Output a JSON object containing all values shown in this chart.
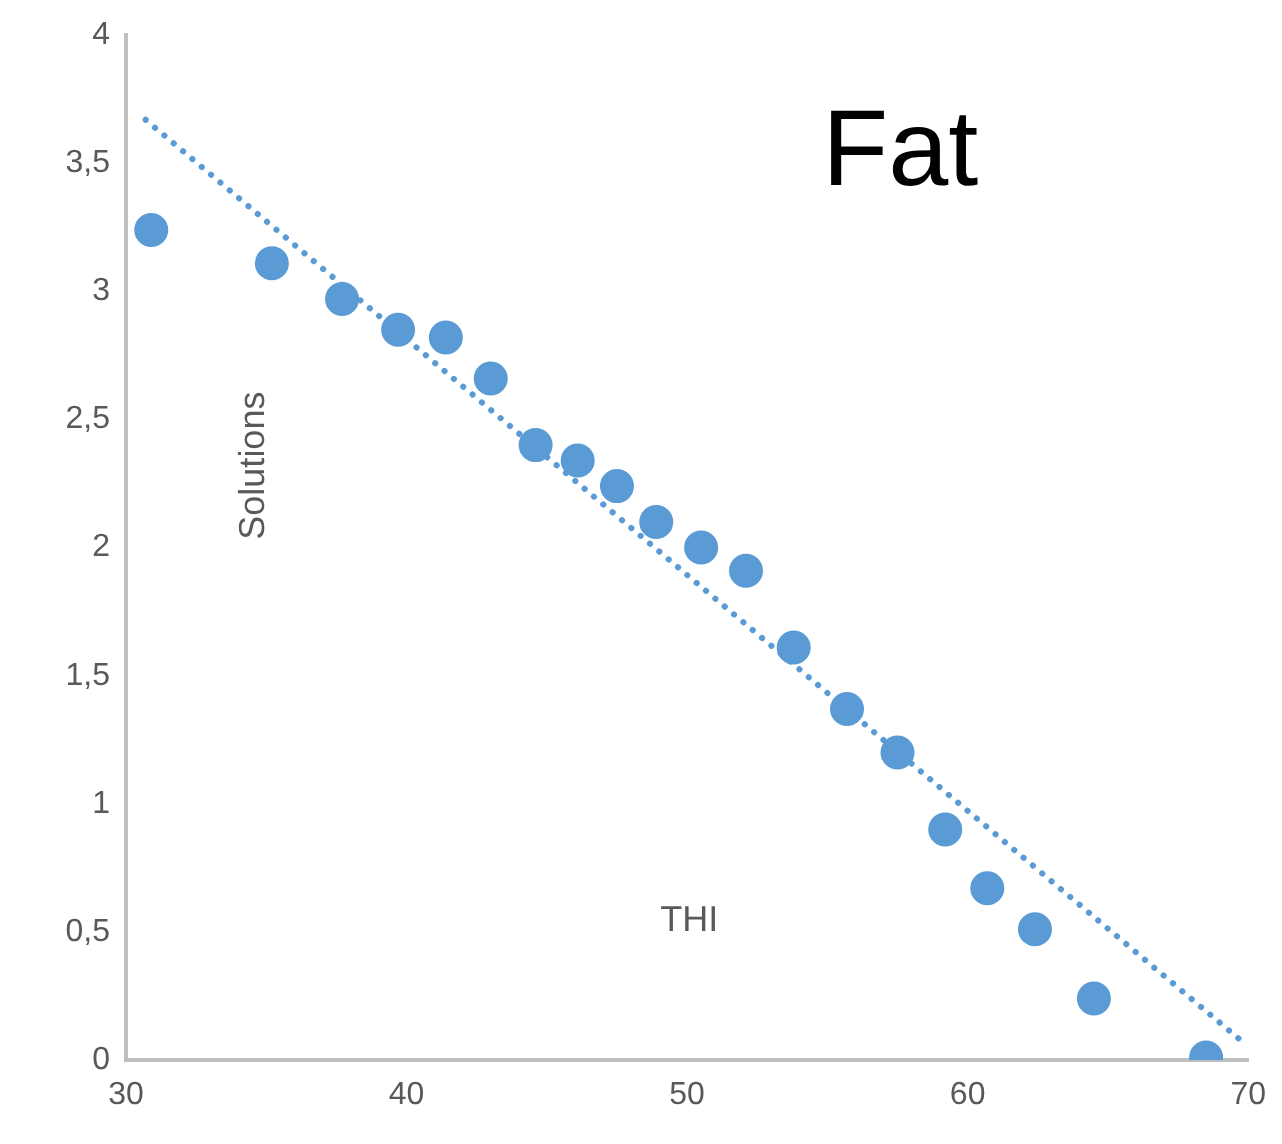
{
  "chart_data": {
    "type": "scatter",
    "title": "Fat",
    "xlabel": "THI",
    "ylabel": "Solutions",
    "xlim": [
      30,
      70
    ],
    "xticks": [
      30,
      40,
      50,
      60,
      70
    ],
    "ylim": [
      0,
      4
    ],
    "yticks": [
      0,
      {
        "value": 0.5,
        "label": "0,5"
      },
      1,
      {
        "value": 1.5,
        "label": "1,5"
      },
      2,
      {
        "value": 2.5,
        "label": "2,5"
      },
      3,
      {
        "value": 3.5,
        "label": "3,5"
      },
      4
    ],
    "grid": false,
    "legend": false,
    "marker": "circle",
    "series": [
      {
        "color": "#5b9bd5",
        "x": [
          30.9,
          35.2,
          37.7,
          39.7,
          41.4,
          43.0,
          44.6,
          46.1,
          47.5,
          48.9,
          50.5,
          52.1,
          53.8,
          55.7,
          57.5,
          59.2,
          60.7,
          62.4,
          64.5,
          68.5
        ],
        "values": [
          3.24,
          3.11,
          2.97,
          2.85,
          2.82,
          2.66,
          2.4,
          2.34,
          2.24,
          2.1,
          2.0,
          1.91,
          1.61,
          1.37,
          1.2,
          0.9,
          0.67,
          0.51,
          0.24,
          0.01
        ]
      },
      {
        "type": "line",
        "color": "#5b9bd5",
        "line_style": "dotted",
        "marker": "none",
        "x": [
          30.7,
          69.7
        ],
        "values": [
          3.67,
          0.08
        ]
      }
    ]
  }
}
